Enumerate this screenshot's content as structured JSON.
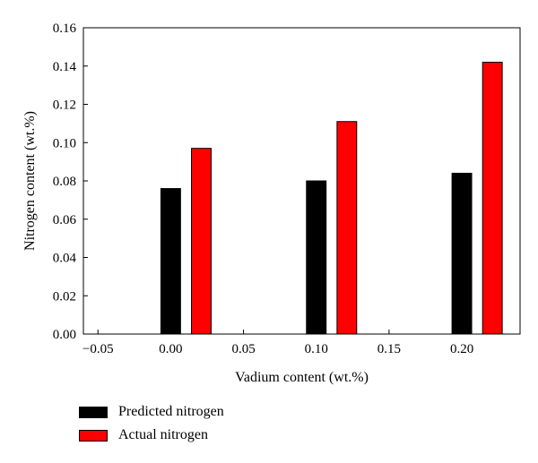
{
  "chart_data": {
    "type": "bar",
    "x": [
      0.0,
      0.1,
      0.2
    ],
    "series": [
      {
        "name": "Predicted nitrogen",
        "values": [
          0.076,
          0.08,
          0.084
        ],
        "color": "#000000"
      },
      {
        "name": "Actual nitrogen",
        "values": [
          0.097,
          0.111,
          0.142
        ],
        "color": "#ff0000"
      }
    ],
    "xlabel": "Vadium content (wt.%)",
    "ylabel": "Nitrogen content (wt.%)",
    "xlim": [
      -0.06,
      0.24
    ],
    "ylim": [
      0,
      0.16
    ],
    "xticks": [
      "−0.05",
      "0.00",
      "0.05",
      "0.10",
      "0.15",
      "0.20"
    ],
    "xtick_values": [
      -0.05,
      0.0,
      0.05,
      0.1,
      0.15,
      0.2
    ],
    "yticks": [
      "0.00",
      "0.02",
      "0.04",
      "0.06",
      "0.08",
      "0.10",
      "0.12",
      "0.14",
      "0.16"
    ],
    "ytick_values": [
      0,
      0.02,
      0.04,
      0.06,
      0.08,
      0.1,
      0.12,
      0.14,
      0.16
    ],
    "grid": false,
    "legend_position": "bottom-left"
  }
}
